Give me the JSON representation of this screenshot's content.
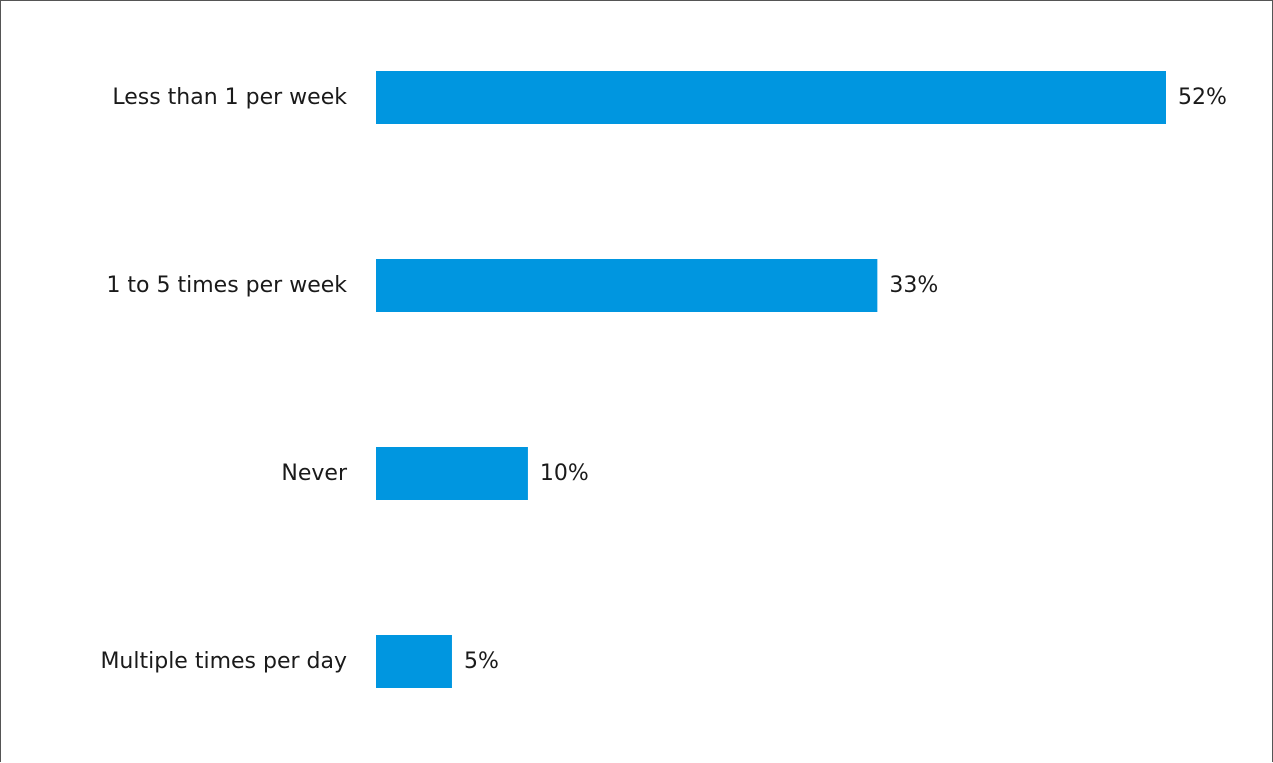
{
  "chart_data": {
    "type": "bar",
    "orientation": "horizontal",
    "categories": [
      "Less than 1 per week",
      "1 to 5 times per week",
      "Never",
      "Multiple times per day"
    ],
    "values": [
      52,
      33,
      10,
      5
    ],
    "value_labels": [
      "52%",
      "33%",
      "10%",
      "5%"
    ],
    "unit": "%",
    "bar_color": "#0096E0",
    "grid": false,
    "legend": "none",
    "xlim": [
      0,
      52
    ]
  }
}
